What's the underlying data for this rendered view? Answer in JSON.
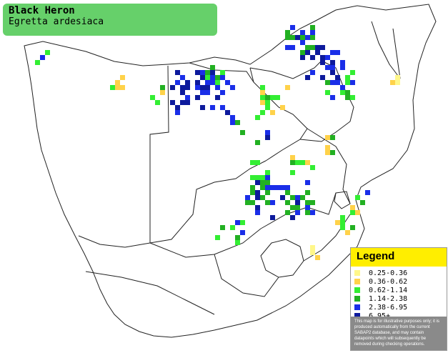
{
  "header": {
    "common_name": "Black Heron",
    "scientific_name": "Egretta ardesiaca"
  },
  "legend": {
    "title": "Legend",
    "items": [
      {
        "label": "0.25-0.36",
        "color": "#fff78a"
      },
      {
        "label": "0.36-0.62",
        "color": "#ffd24a"
      },
      {
        "label": "0.62-1.14",
        "color": "#33ee33"
      },
      {
        "label": "1.14-2.38",
        "color": "#22b022"
      },
      {
        "label": "2.38-6.95",
        "color": "#1a2ee8"
      },
      {
        "label": "6.95+",
        "color": "#0d1a9c"
      }
    ],
    "note": "This map is for illustrative purposes only; it is produced automatically from the current SABAP2 database, and may contain datapoints which will subsequently be removed during checking operations."
  },
  "map": {
    "colors": {
      "border": "#222222",
      "background": "#ffffff"
    }
  }
}
